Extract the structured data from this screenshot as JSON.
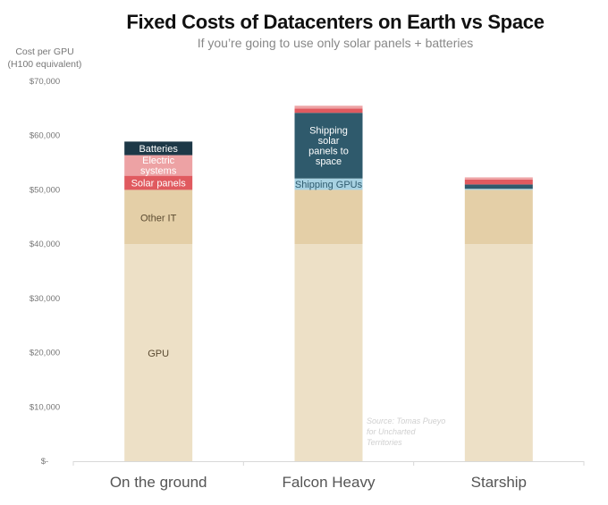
{
  "chart_data": {
    "type": "bar",
    "stacked": true,
    "title": "Fixed Costs of Datacenters on Earth vs Space",
    "subtitle": "If you’re going to use only solar panels + batteries",
    "ylabel_lines": [
      "Cost per GPU",
      "(H100 equivalent)"
    ],
    "xlabel": "",
    "ylim": [
      0,
      70000
    ],
    "yticks": [
      0,
      10000,
      20000,
      30000,
      40000,
      50000,
      60000,
      70000
    ],
    "ytick_labels": [
      "$-",
      "$10,000",
      "$20,000",
      "$30,000",
      "$40,000",
      "$50,000",
      "$60,000",
      "$70,000"
    ],
    "categories": [
      "On the ground",
      "Falcon Heavy",
      "Starship"
    ],
    "series": [
      {
        "name": "GPU",
        "color": "#ede0c6",
        "text_color": "#5a4a30",
        "values": [
          40000,
          40000,
          40000
        ],
        "labels": [
          "GPU",
          "",
          ""
        ]
      },
      {
        "name": "Other IT",
        "color": "#e4cfa7",
        "text_color": "#5a4a30",
        "values": [
          10000,
          10000,
          10000
        ],
        "labels": [
          "Other IT",
          "",
          ""
        ]
      },
      {
        "name": "Shipping GPUs",
        "color": "#a8d2e2",
        "text_color": "#2f5b6e",
        "values": [
          0,
          2100,
          200
        ],
        "labels": [
          "",
          "Shipping GPUs",
          ""
        ]
      },
      {
        "name": "Shipping solar panels to space",
        "color": "#2f5a6c",
        "text_color": "#ffffff",
        "values": [
          0,
          12100,
          800
        ],
        "labels": [
          "",
          "Shipping solar panels to space",
          ""
        ]
      },
      {
        "name": "Solar panels",
        "color": "#e05a5f",
        "text_color": "#ffffff",
        "values": [
          2600,
          800,
          900
        ],
        "labels": [
          "Solar panels",
          "",
          ""
        ]
      },
      {
        "name": "Electric systems",
        "color": "#eda2a4",
        "text_color": "#ffffff",
        "values": [
          3800,
          500,
          400
        ],
        "labels": [
          "Electric systems",
          "",
          ""
        ]
      },
      {
        "name": "Batteries",
        "color": "#1d3847",
        "text_color": "#ffffff",
        "values": [
          2500,
          0,
          0
        ],
        "labels": [
          "Batteries",
          "",
          ""
        ]
      }
    ],
    "grid": false,
    "legend": "none",
    "annotation": "Source: Tomas Pueyo for Uncharted Territories"
  }
}
